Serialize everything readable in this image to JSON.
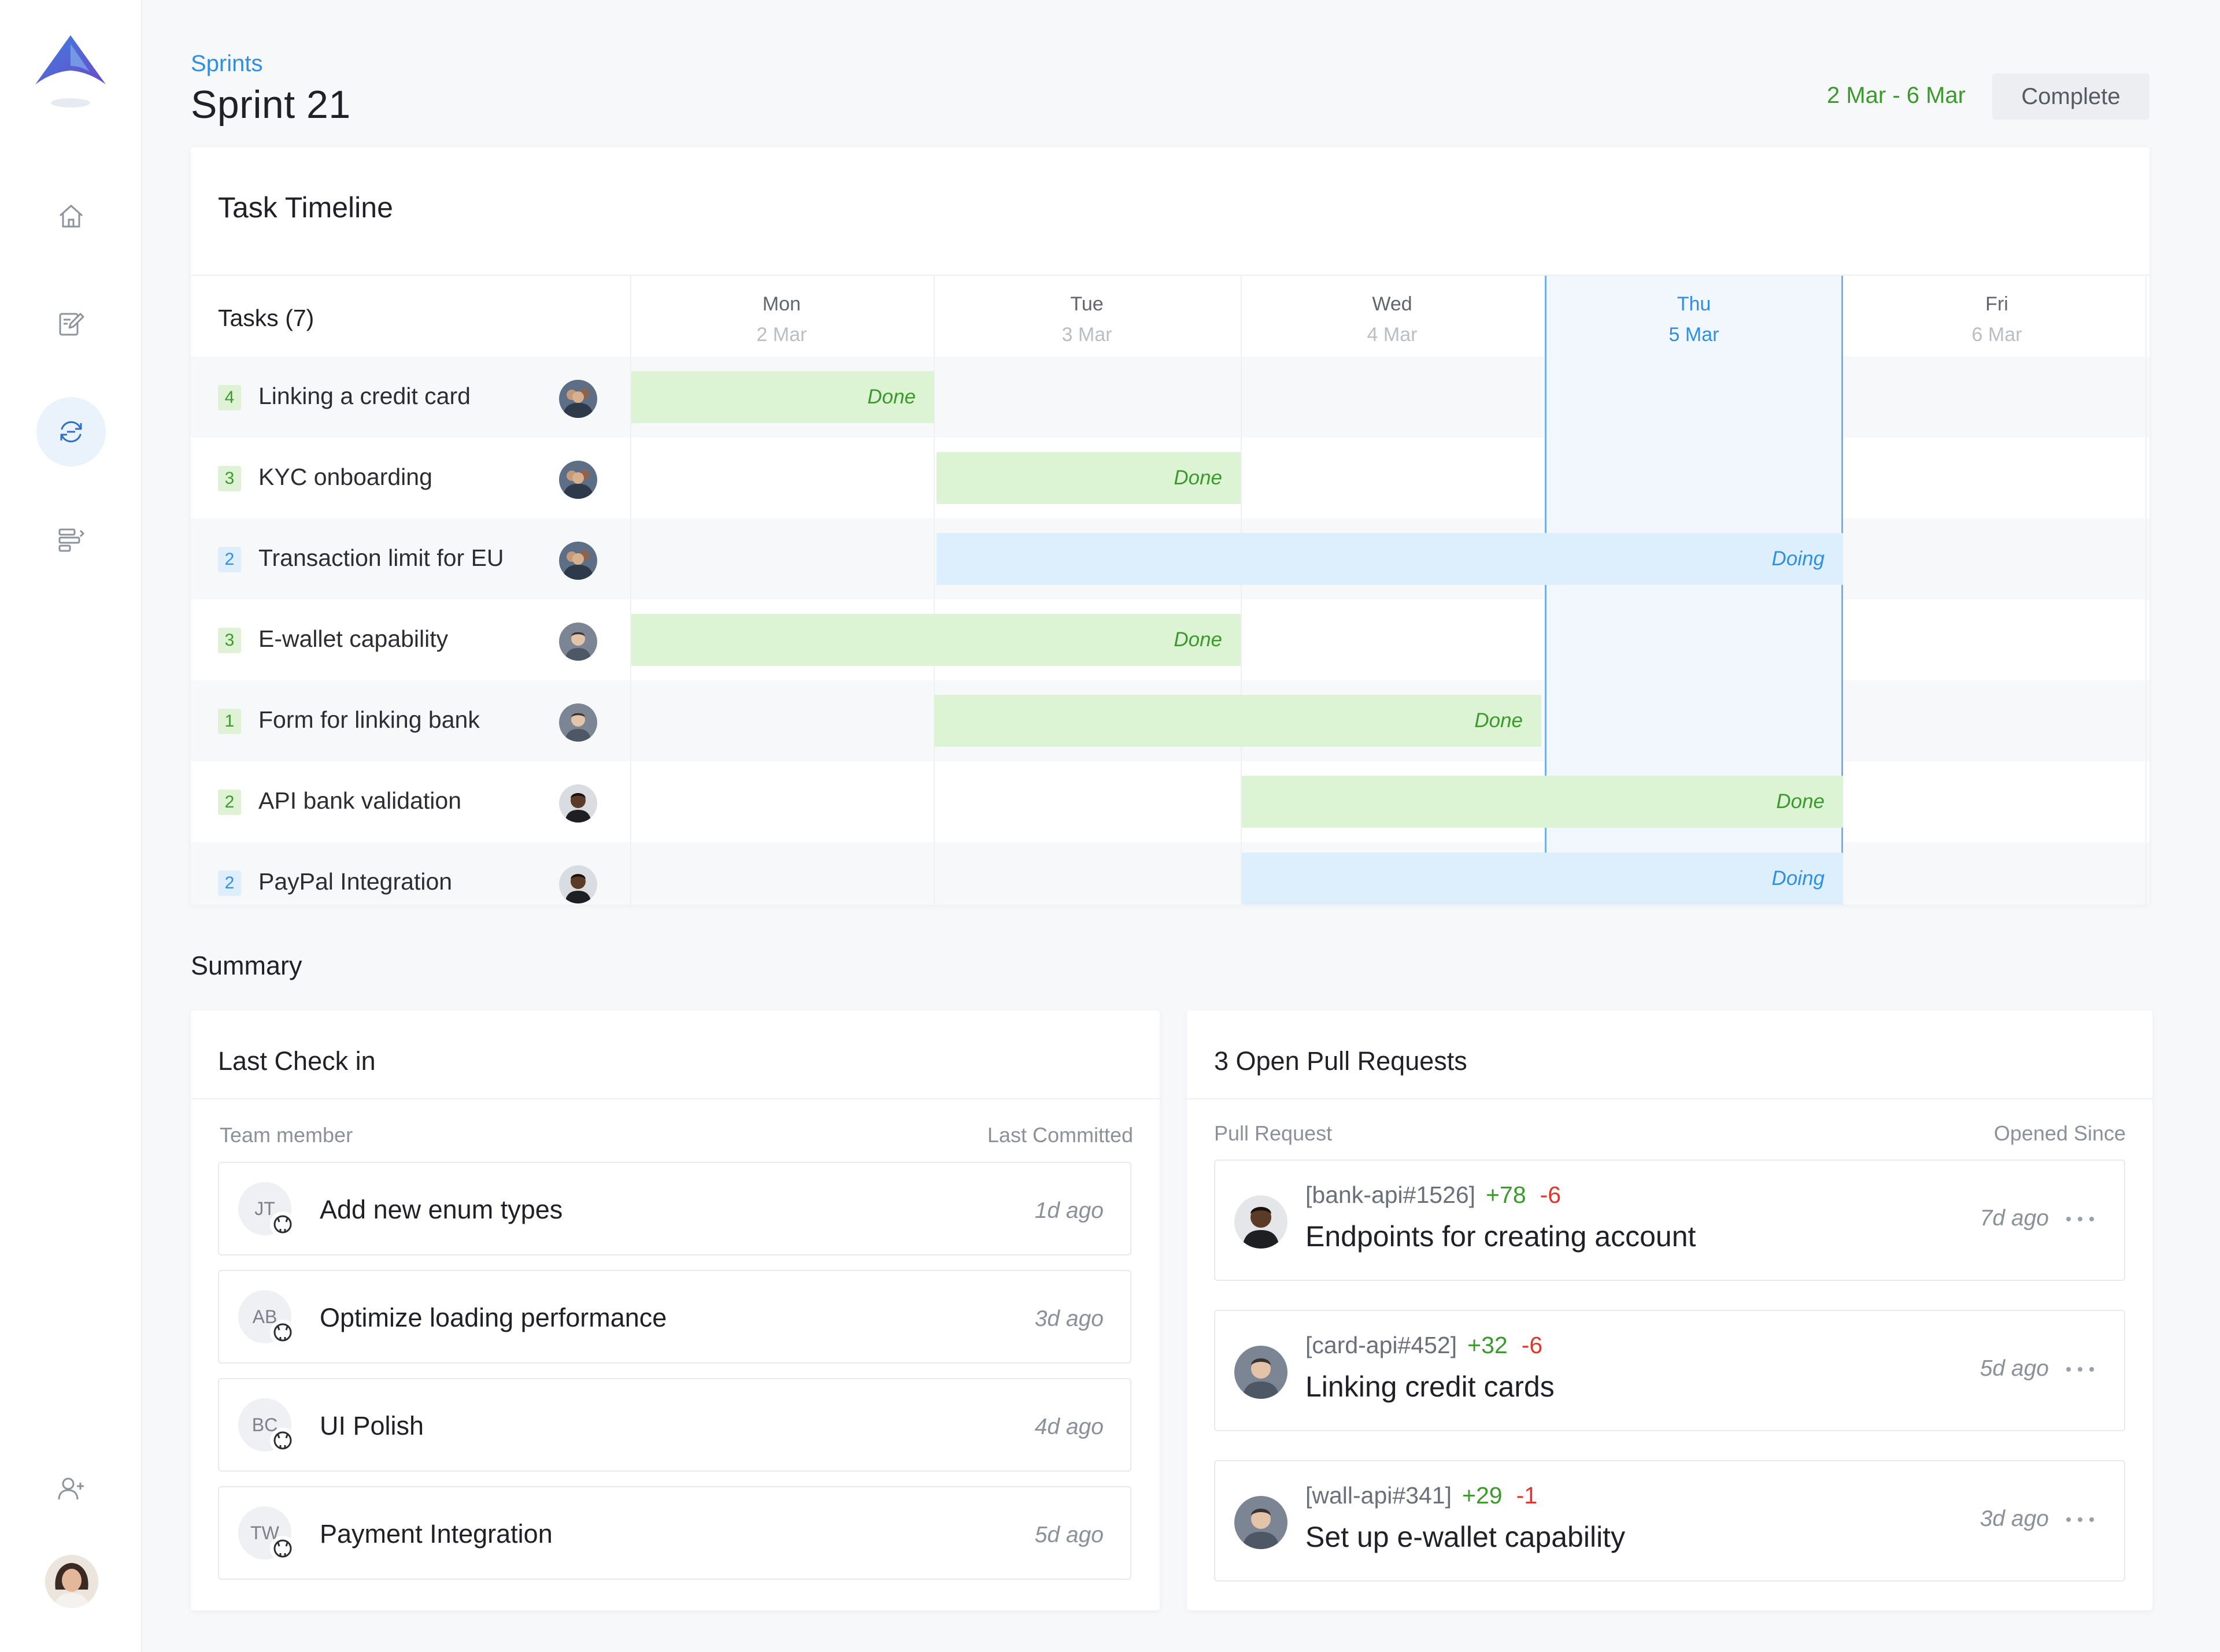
{
  "header": {
    "breadcrumb": "Sprints",
    "title": "Sprint 21",
    "date_range": "2 Mar - 6 Mar",
    "complete_button": "Complete"
  },
  "sidebar": {
    "logo": "app-logo",
    "items": [
      {
        "name": "home",
        "icon": "home-icon",
        "active": false
      },
      {
        "name": "notes",
        "icon": "edit-document-icon",
        "active": false
      },
      {
        "name": "sprints",
        "icon": "sprint-cycle-icon",
        "active": true
      },
      {
        "name": "roadmap",
        "icon": "timeline-bars-icon",
        "active": false
      }
    ],
    "bottom": {
      "add_user_icon": "add-user-icon",
      "profile_avatar": "profile-avatar"
    }
  },
  "timeline": {
    "title": "Task Timeline",
    "tasks_header": "Tasks (7)",
    "days": [
      {
        "name": "Mon",
        "date": "2 Mar",
        "today": false
      },
      {
        "name": "Tue",
        "date": "3 Mar",
        "today": false
      },
      {
        "name": "Wed",
        "date": "4 Mar",
        "today": false
      },
      {
        "name": "Thu",
        "date": "5 Mar",
        "today": true
      },
      {
        "name": "Fri",
        "date": "6 Mar",
        "today": false
      }
    ],
    "tasks": [
      {
        "points": "4",
        "badge": "green",
        "name": "Linking a credit card",
        "avatar": "group",
        "status": "Done",
        "start_day": "Mon",
        "end_day": "Mon"
      },
      {
        "points": "3",
        "badge": "green",
        "name": "KYC onboarding",
        "avatar": "group",
        "status": "Done",
        "start_day": "Tue",
        "end_day": "Tue"
      },
      {
        "points": "2",
        "badge": "blue",
        "name": "Transaction limit for EU",
        "avatar": "group",
        "status": "Doing",
        "start_day": "Tue",
        "end_day": "Thu"
      },
      {
        "points": "3",
        "badge": "green",
        "name": "E-wallet capability",
        "avatar": "man-gray",
        "status": "Done",
        "start_day": "Mon",
        "end_day": "Tue"
      },
      {
        "points": "1",
        "badge": "green",
        "name": "Form for linking bank",
        "avatar": "man-gray",
        "status": "Done",
        "start_day": "Tue",
        "end_day": "Wed"
      },
      {
        "points": "2",
        "badge": "green",
        "name": "API bank validation",
        "avatar": "man-dark",
        "status": "Done",
        "start_day": "Wed",
        "end_day": "Thu"
      },
      {
        "points": "2",
        "badge": "blue",
        "name": "PayPal Integration",
        "avatar": "man-dark",
        "status": "Doing",
        "start_day": "Wed",
        "end_day": "Thu"
      }
    ]
  },
  "summary": {
    "title": "Summary",
    "checkin": {
      "title": "Last Check in",
      "col_member": "Team member",
      "col_committed": "Last Committed",
      "items": [
        {
          "initials": "JT",
          "message": "Add new enum types",
          "ago": "1d ago"
        },
        {
          "initials": "AB",
          "message": "Optimize loading performance",
          "ago": "3d ago"
        },
        {
          "initials": "BC",
          "message": "UI Polish",
          "ago": "4d ago"
        },
        {
          "initials": "TW",
          "message": "Payment Integration",
          "ago": "5d ago"
        }
      ]
    },
    "pull_requests": {
      "title": "3 Open Pull Requests",
      "col_pr": "Pull Request",
      "col_since": "Opened Since",
      "items": [
        {
          "ref": "[bank-api#1526]",
          "added": "+78",
          "removed": "-6",
          "title": "Endpoints for creating account",
          "ago": "7d ago",
          "avatar": "man-dark"
        },
        {
          "ref": "[card-api#452]",
          "added": "+32",
          "removed": "-6",
          "title": "Linking credit cards",
          "ago": "5d ago",
          "avatar": "man-gray"
        },
        {
          "ref": "[wall-api#341]",
          "added": "+29",
          "removed": "-1",
          "title": "Set up e-wallet capability",
          "ago": "3d ago",
          "avatar": "man-gray"
        }
      ]
    }
  },
  "colors": {
    "accent_blue": "#2f8fe0",
    "done_green": "#3a9a2c",
    "done_bg": "#dcf3d4",
    "doing_bg": "#ddeffc",
    "removed_red": "#e0352b"
  }
}
